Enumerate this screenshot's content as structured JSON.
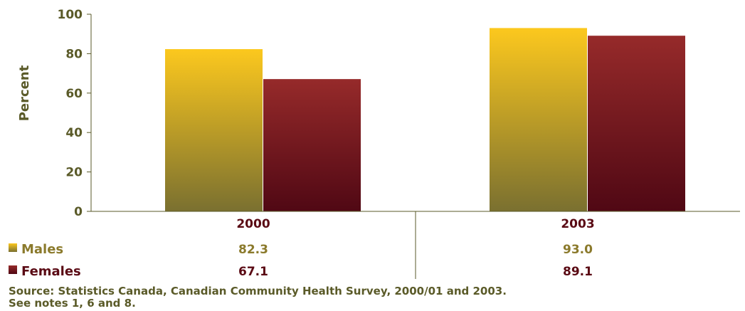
{
  "chart_data": {
    "type": "bar",
    "categories": [
      "2000",
      "2003"
    ],
    "series": [
      {
        "name": "Males",
        "values": [
          82.3,
          93.0
        ],
        "value_labels": [
          "82.3",
          "93.0"
        ]
      },
      {
        "name": "Females",
        "values": [
          67.1,
          89.1
        ],
        "value_labels": [
          "67.1",
          "89.1"
        ]
      }
    ],
    "ylabel": "Percent",
    "ylim": [
      0,
      100
    ],
    "yticks": [
      0,
      20,
      40,
      60,
      80,
      100
    ],
    "grid": false,
    "legend": "bottom-left data table",
    "colors": {
      "Males": {
        "top": "#fcc81e",
        "bottom": "#7a7030"
      },
      "Females": {
        "top": "#962a2a",
        "bottom": "#500814"
      },
      "axis": "#5a5a28",
      "category_text": "#5a0a14",
      "males_text": "#8b7a2c",
      "females_text": "#5a0a14"
    }
  },
  "source": {
    "line1": "Source: Statistics Canada, Canadian Community Health Survey, 2000/01 and 2003.",
    "line2": "See notes 1, 6 and 8."
  }
}
